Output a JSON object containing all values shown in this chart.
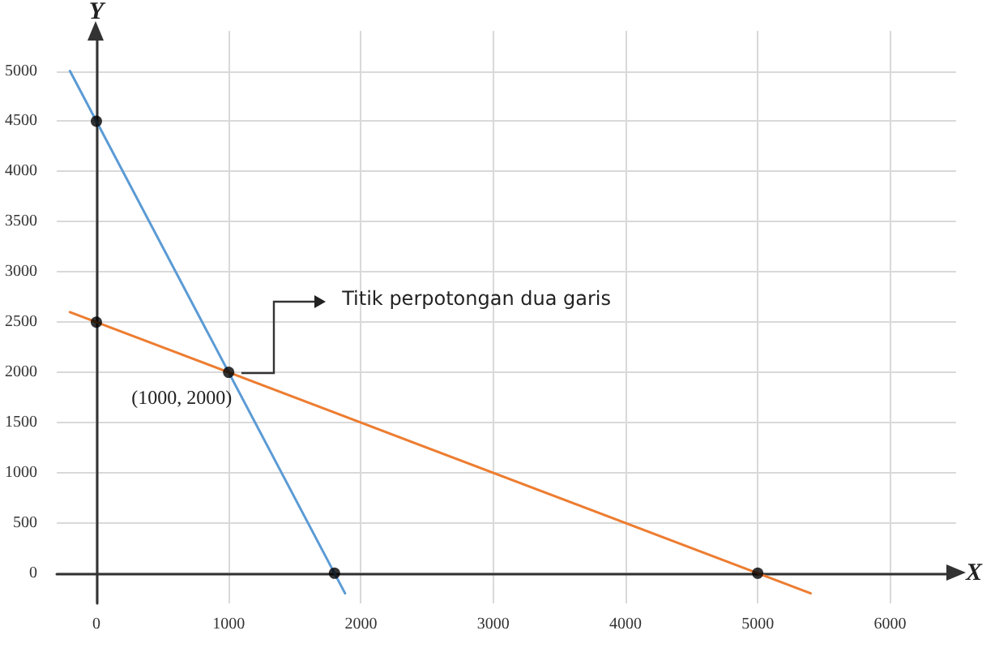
{
  "chart_data": {
    "type": "line",
    "xlabel": "X",
    "ylabel": "Y",
    "xlim": [
      -300,
      6500
    ],
    "ylim": [
      -300,
      5400
    ],
    "xticks": [
      0,
      1000,
      2000,
      3000,
      4000,
      5000,
      6000
    ],
    "yticks": [
      0,
      500,
      1000,
      1500,
      2000,
      2500,
      3000,
      3500,
      4000,
      4500,
      5000
    ],
    "grid": true,
    "line_style": "solid",
    "series": [
      {
        "color": "#5b9bd5",
        "x": [
          -200,
          1880
        ],
        "values": [
          5000,
          -200
        ],
        "marker": "none"
      },
      {
        "color": "#ed7d31",
        "x": [
          -200,
          5400
        ],
        "values": [
          2600,
          -200
        ],
        "marker": "none"
      },
      {
        "type": "scatter",
        "color": "#000000",
        "x": [
          0,
          0,
          1000,
          1800,
          5000
        ],
        "values": [
          4500,
          2500,
          2000,
          0,
          0
        ],
        "marker": "circle"
      }
    ],
    "annotations": [
      "Titik perpotongan dua garis",
      {
        "text": "(1000, 2000)",
        "x": 1000,
        "y": 2000
      }
    ]
  }
}
